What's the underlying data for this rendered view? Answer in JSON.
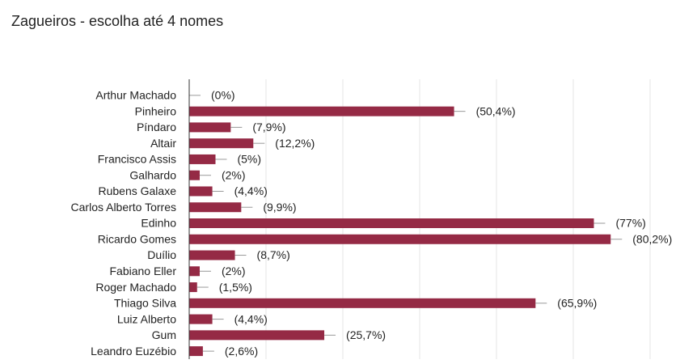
{
  "chart_data": {
    "type": "bar",
    "orientation": "horizontal",
    "title": "Zagueiros - escolha até 4 nomes",
    "categories": [
      "Arthur Machado",
      "Pinheiro",
      "Píndaro",
      "Altair",
      "Francisco Assis",
      "Galhardo",
      "Rubens Galaxe",
      "Carlos Alberto Torres",
      "Edinho",
      "Ricardo Gomes",
      "Duílio",
      "Fabiano Eller",
      "Roger Machado",
      "Thiago Silva",
      "Luiz Alberto",
      "Gum",
      "Leandro Euzébio"
    ],
    "values": [
      0,
      50.4,
      7.9,
      12.2,
      5,
      2,
      4.4,
      9.9,
      77,
      80.2,
      8.7,
      2,
      1.5,
      65.9,
      4.4,
      25.7,
      2.6
    ],
    "value_labels": [
      "(0%)",
      "(50,4%)",
      "(7,9%)",
      "(12,2%)",
      "(5%)",
      "(2%)",
      "(4,4%)",
      "(9,9%)",
      "(77%)",
      "(80,2%)",
      "(8,7%)",
      "(2%)",
      "(1,5%)",
      "(65,9%)",
      "(4,4%)",
      "(25,7%)",
      "(2,6%)"
    ],
    "color": "#952a45",
    "xlim": [
      0,
      87.7
    ]
  }
}
